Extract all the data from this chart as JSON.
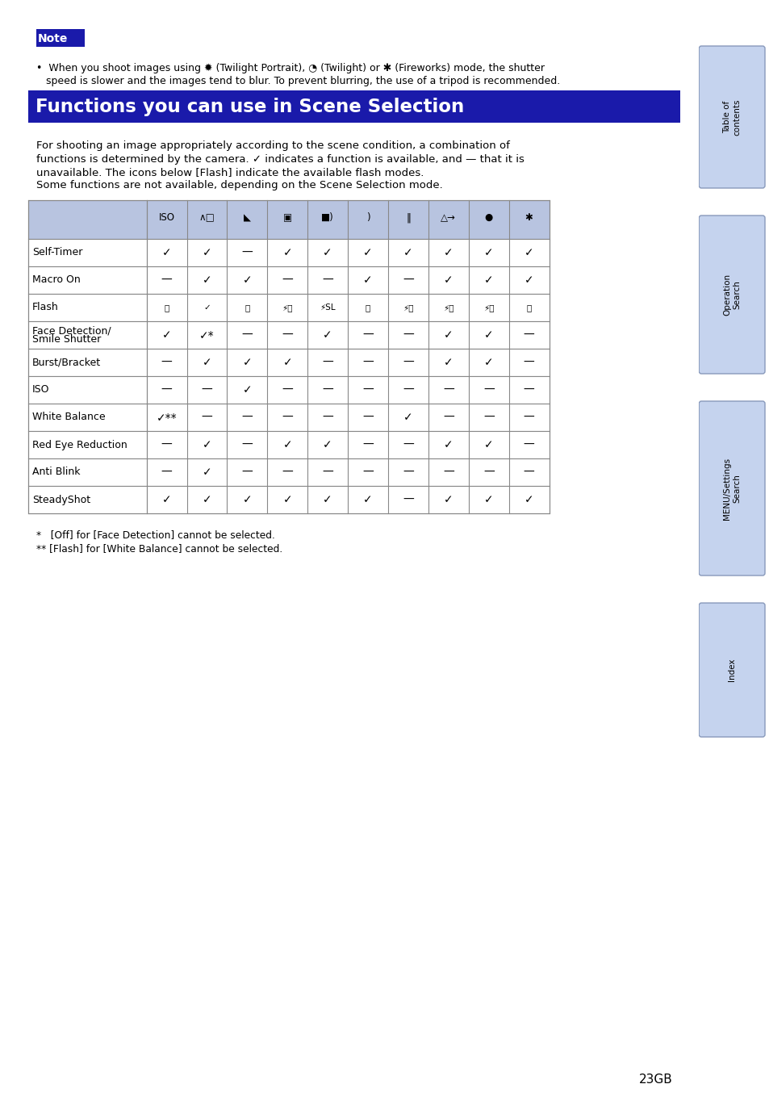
{
  "page_bg": "#ffffff",
  "note_bg": "#1a1aaa",
  "header_bg": "#1a1aaa",
  "header_text": "Functions you can use in Scene Selection",
  "table_header_bg": "#b8c4e0",
  "table_border": "#888888",
  "body_text_1": "For shooting an image appropriately according to the scene condition, a combination of",
  "body_text_2": "functions is determined by the camera. ✓ indicates a function is available, and — that it is",
  "body_text_3": "unavailable. The icons below [Flash] indicate the available flash modes.",
  "body_text_4": "Some functions are not available, depending on the Scene Selection mode.",
  "bullet_line1": "•  When you shoot images using ✹ (Twilight Portrait), ◔ (Twilight) or ✱ (Fireworks) mode, the shutter",
  "bullet_line2": "   speed is slower and the images tend to blur. To prevent blurring, the use of a tripod is recommended.",
  "row_labels": [
    "Self-Timer",
    "Macro On",
    "Flash",
    "Face Detection/\nSmile Shutter",
    "Burst/Bracket",
    "ISO",
    "White Balance",
    "Red Eye Reduction",
    "Anti Blink",
    "SteadyShot"
  ],
  "table_data": [
    [
      "✓",
      "✓",
      "—",
      "✓",
      "✓",
      "✓",
      "✓",
      "✓",
      "✓",
      "✓"
    ],
    [
      "—",
      "✓",
      "✓",
      "—",
      "—",
      "✓",
      "—",
      "✓",
      "✓",
      "✓"
    ],
    [
      "FLASH",
      "✓",
      "FLASH",
      "FLASH",
      "FLASH",
      "FLASH",
      "FLASH",
      "FLASH",
      "FLASH",
      "FLASH"
    ],
    [
      "✓",
      "✓*",
      "—",
      "—",
      "✓",
      "—",
      "—",
      "✓",
      "✓",
      "—"
    ],
    [
      "—",
      "✓",
      "✓",
      "✓",
      "—",
      "—",
      "—",
      "✓",
      "✓",
      "—"
    ],
    [
      "—",
      "—",
      "✓",
      "—",
      "—",
      "—",
      "—",
      "—",
      "—",
      "—"
    ],
    [
      "✓**",
      "—",
      "—",
      "—",
      "—",
      "—",
      "✓",
      "—",
      "—",
      "—"
    ],
    [
      "—",
      "✓",
      "—",
      "✓",
      "✓",
      "—",
      "—",
      "✓",
      "✓",
      "—"
    ],
    [
      "—",
      "✓",
      "—",
      "—",
      "—",
      "—",
      "—",
      "—",
      "—",
      "—"
    ],
    [
      "✓",
      "✓",
      "✓",
      "✓",
      "✓",
      "✓",
      "—",
      "✓",
      "✓",
      "✓"
    ]
  ],
  "flash_row_data": [
    "Ⓢ",
    "✓",
    "Ⓢ",
    "⚡Ⓢ",
    "⚡SL",
    "Ⓢ",
    "⚡Ⓢ",
    "⚡Ⓢ",
    "⚡Ⓢ",
    "Ⓢ"
  ],
  "footnote1": "*   [Off] for [Face Detection] cannot be selected.",
  "footnote2": "** [Flash] for [White Balance] cannot be selected.",
  "page_number": "23GB",
  "sidebar_labels": [
    "Table of\ncontents",
    "Operation\nSearch",
    "MENU/Settings\nSearch",
    "Index"
  ]
}
